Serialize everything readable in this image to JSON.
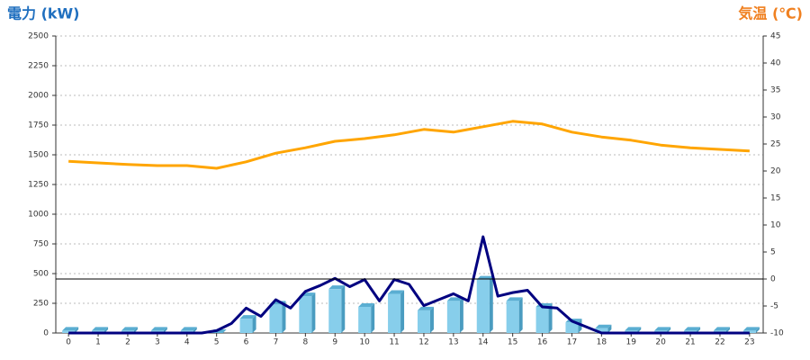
{
  "chart_data": {
    "type": "combo",
    "y_label": "電力 (kW)",
    "y2_label": "気温 (℃)",
    "y_label_color": "#1f6fbf",
    "y2_label_color": "#f08020",
    "xlim": [
      -0.43,
      23.46
    ],
    "xticks": [
      0,
      1,
      2,
      3,
      4,
      5,
      6,
      7,
      8,
      9,
      10,
      11,
      12,
      13,
      14,
      15,
      16,
      17,
      18,
      19,
      20,
      21,
      22,
      23
    ],
    "ylim": [
      0,
      2500
    ],
    "yticks": [
      0,
      250,
      500,
      750,
      1000,
      1250,
      1500,
      1750,
      2000,
      2250,
      2500
    ],
    "y2lim": [
      -10,
      45
    ],
    "y2ticks": [
      -10,
      -5,
      0,
      5,
      10,
      15,
      20,
      25,
      30,
      35,
      40,
      45
    ],
    "grid": true,
    "reference_line": {
      "axis": "y2",
      "value": 0
    },
    "series": [
      {
        "type": "bar",
        "color": "#87ceeb",
        "x": [
          0,
          1,
          2,
          3,
          4,
          5,
          6,
          7,
          8,
          9,
          10,
          11,
          12,
          13,
          14,
          15,
          16,
          17,
          18,
          19,
          20,
          21,
          22,
          23
        ],
        "values": [
          20,
          20,
          20,
          20,
          20,
          0,
          120,
          240,
          310,
          370,
          220,
          330,
          190,
          270,
          450,
          270,
          220,
          90,
          40,
          20,
          20,
          20,
          20,
          20
        ]
      },
      {
        "type": "line",
        "color": "#000080",
        "x": [
          0,
          0.5,
          1,
          1.5,
          2,
          2.5,
          3,
          3.5,
          4,
          4.5,
          5,
          5.5,
          6,
          6.5,
          7,
          7.5,
          8,
          8.5,
          9,
          9.5,
          10,
          10.5,
          11,
          11.5,
          12,
          12.5,
          13,
          13.5,
          14,
          14.5,
          15,
          15.5,
          16,
          16.5,
          17,
          17.5,
          18,
          18.5,
          19,
          19.5,
          20,
          20.5,
          21,
          21.5,
          22,
          22.5,
          23
        ],
        "values": [
          0,
          0,
          0,
          0,
          0,
          0,
          0,
          0,
          0,
          0,
          20,
          80,
          210,
          140,
          280,
          210,
          350,
          400,
          460,
          390,
          450,
          270,
          450,
          410,
          230,
          280,
          330,
          270,
          810,
          310,
          340,
          360,
          220,
          210,
          100,
          50,
          0,
          0,
          0,
          0,
          0,
          0,
          0,
          0,
          0,
          0,
          0
        ]
      },
      {
        "type": "line",
        "axis": "y2",
        "color": "#ffa500",
        "x": [
          0,
          1,
          2,
          3,
          4,
          5,
          6,
          7,
          8,
          9,
          10,
          11,
          12,
          13,
          14,
          15,
          16,
          17,
          18,
          19,
          20,
          21,
          22,
          23
        ],
        "values": [
          21.8,
          21.5,
          21.2,
          21,
          21,
          20.5,
          21.7,
          23.3,
          24.3,
          25.5,
          26,
          26.7,
          27.7,
          27.2,
          28.2,
          29.2,
          28.7,
          27.2,
          26.3,
          25.7,
          24.8,
          24.3,
          24,
          23.7
        ]
      }
    ]
  }
}
